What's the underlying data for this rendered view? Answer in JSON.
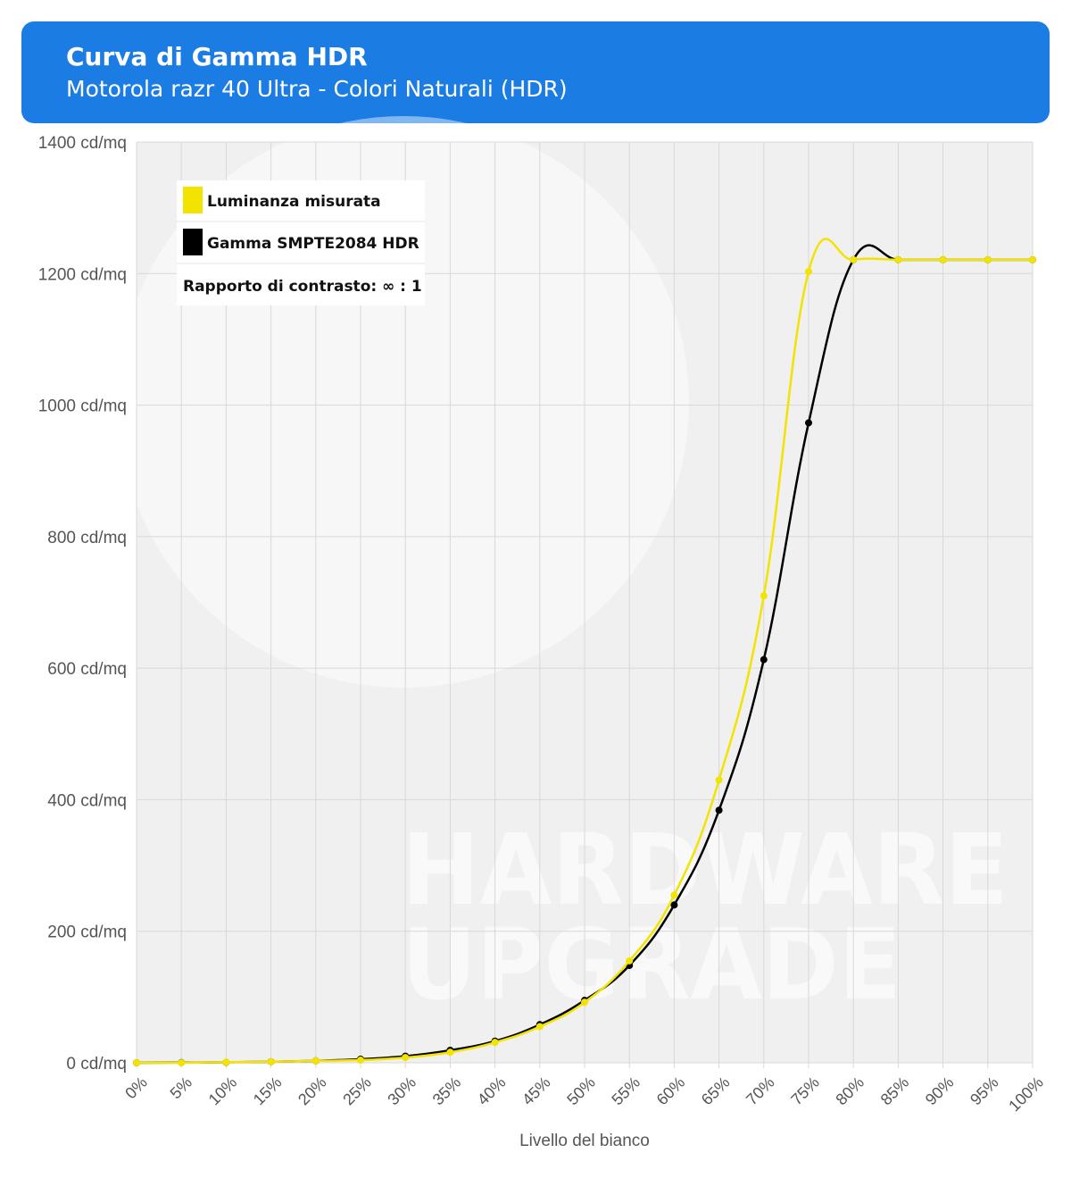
{
  "header": {
    "title": "Curva di Gamma HDR",
    "subtitle": "Motorola razr 40 Ultra - Colori Naturali (HDR)"
  },
  "watermark": [
    "HARDWARE",
    "UPGRADE"
  ],
  "colors": {
    "header_bg": "#1b7ce4",
    "measured": "#f2e400",
    "reference": "#000000",
    "plot_bg": "#f0f0f0",
    "grid": "#d8d8d8"
  },
  "legend": {
    "placement": "top-left",
    "items": [
      "Luminanza misurata",
      "Gamma SMPTE2084 HDR"
    ],
    "contrast": "Rapporto di contrasto: ∞ : 1"
  },
  "chart_data": {
    "type": "line",
    "xlabel": "Livello del bianco",
    "ylabel": "",
    "y_unit": "cd/mq",
    "ylim": [
      0,
      1400
    ],
    "yticks": [
      0,
      200,
      400,
      600,
      800,
      1000,
      1200,
      1400
    ],
    "ytick_labels": [
      "0 cd/mq",
      "200 cd/mq",
      "400 cd/mq",
      "600 cd/mq",
      "800 cd/mq",
      "1000 cd/mq",
      "1200 cd/mq",
      "1400 cd/mq"
    ],
    "grid": true,
    "categories": [
      "0%",
      "5%",
      "10%",
      "15%",
      "20%",
      "25%",
      "30%",
      "35%",
      "40%",
      "45%",
      "50%",
      "55%",
      "60%",
      "65%",
      "70%",
      "75%",
      "80%",
      "85%",
      "90%",
      "95%",
      "100%"
    ],
    "series": [
      {
        "name": "Luminanza misurata",
        "color": "#f2e400",
        "values": [
          0,
          0,
          1,
          1.5,
          3,
          4,
          8,
          16,
          31,
          55,
          92,
          155,
          255,
          430,
          710,
          1203,
          1221,
          1221,
          1221,
          1221,
          1221
        ]
      },
      {
        "name": "Gamma SMPTE2084 HDR",
        "color": "#000000",
        "values": [
          0,
          0.3,
          0.8,
          1.6,
          3,
          5.5,
          10,
          19,
          33,
          58,
          95,
          148,
          240,
          384,
          613,
          973,
          1221,
          1221,
          1221,
          1221,
          1221
        ]
      }
    ]
  }
}
